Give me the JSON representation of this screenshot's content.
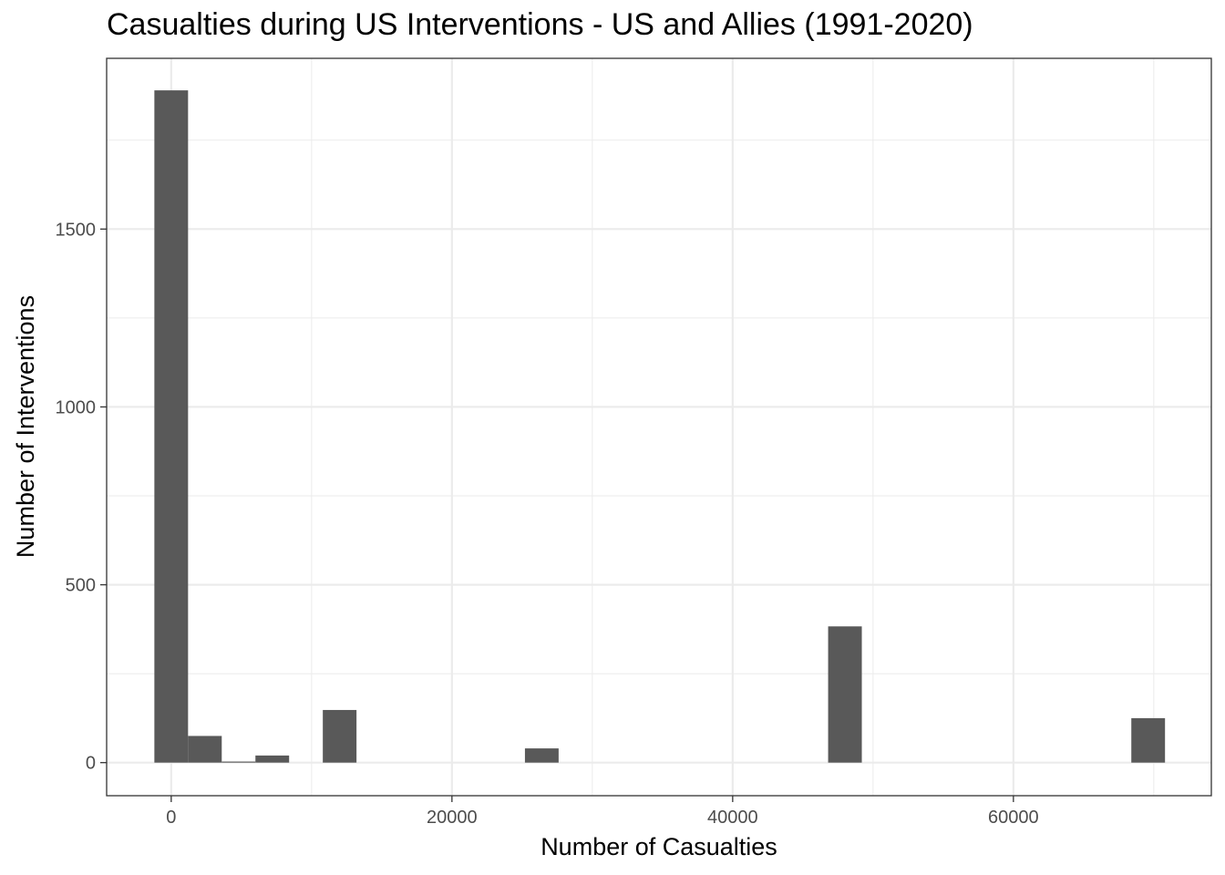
{
  "chart_data": {
    "type": "bar",
    "title": "Casualties during US Interventions - US and Allies (1991-2020)",
    "xlabel": "Number of Casualties",
    "ylabel": "Number of Interventions",
    "xlim": [
      -4600,
      74100
    ],
    "ylim": [
      -93,
      1980
    ],
    "x_ticks": [
      0,
      20000,
      40000,
      60000
    ],
    "y_ticks": [
      0,
      500,
      1000,
      1500
    ],
    "bin_width": 2400,
    "bins": [
      {
        "x": 0,
        "count": 1890
      },
      {
        "x": 2400,
        "count": 75
      },
      {
        "x": 4800,
        "count": 3
      },
      {
        "x": 7200,
        "count": 20
      },
      {
        "x": 12000,
        "count": 148
      },
      {
        "x": 26400,
        "count": 40
      },
      {
        "x": 48000,
        "count": 383
      },
      {
        "x": 69600,
        "count": 125
      }
    ],
    "grid": true,
    "bar_color": "#595959"
  }
}
